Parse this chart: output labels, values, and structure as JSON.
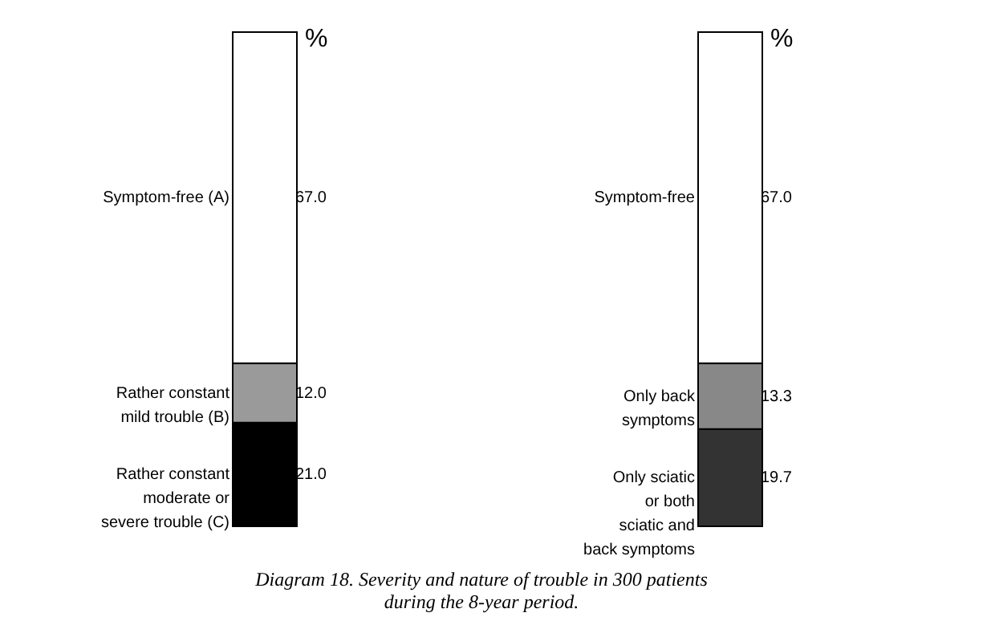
{
  "chart_data": [
    {
      "type": "bar",
      "stacked": true,
      "categories": [
        null
      ],
      "ylabel": "%",
      "legend": false,
      "annotations": [
        "Diagram 18. Severity and nature of trouble in 300 patients\nduring the 8-year period."
      ],
      "series": [
        {
          "name": "Rather constant\nmoderate or\nsevere trouble (C)",
          "color": "#000000",
          "values": [
            21.0
          ],
          "value_labels": [
            "21.0"
          ]
        },
        {
          "name": "Rather constant\nmild trouble (B)",
          "color": "#9a9a9a",
          "values": [
            12.0
          ],
          "value_labels": [
            "12.0"
          ]
        },
        {
          "name": "Symptom-free (A)",
          "color": "#ffffff",
          "values": [
            67.0
          ],
          "value_labels": [
            "67.0"
          ]
        }
      ]
    },
    {
      "type": "bar",
      "stacked": true,
      "categories": [
        null
      ],
      "ylabel": "%",
      "legend": false,
      "series": [
        {
          "name": "Only sciatic\nor both\nsciatic and\nback symptoms",
          "color": "#333333",
          "values": [
            19.7
          ],
          "value_labels": [
            "19.7"
          ]
        },
        {
          "name": "Only back\nsymptoms",
          "color": "#888888",
          "values": [
            13.3
          ],
          "value_labels": [
            "13.3"
          ]
        },
        {
          "name": "Symptom-free",
          "color": "#ffffff",
          "values": [
            67.0
          ],
          "value_labels": [
            "67.0"
          ]
        }
      ]
    }
  ]
}
